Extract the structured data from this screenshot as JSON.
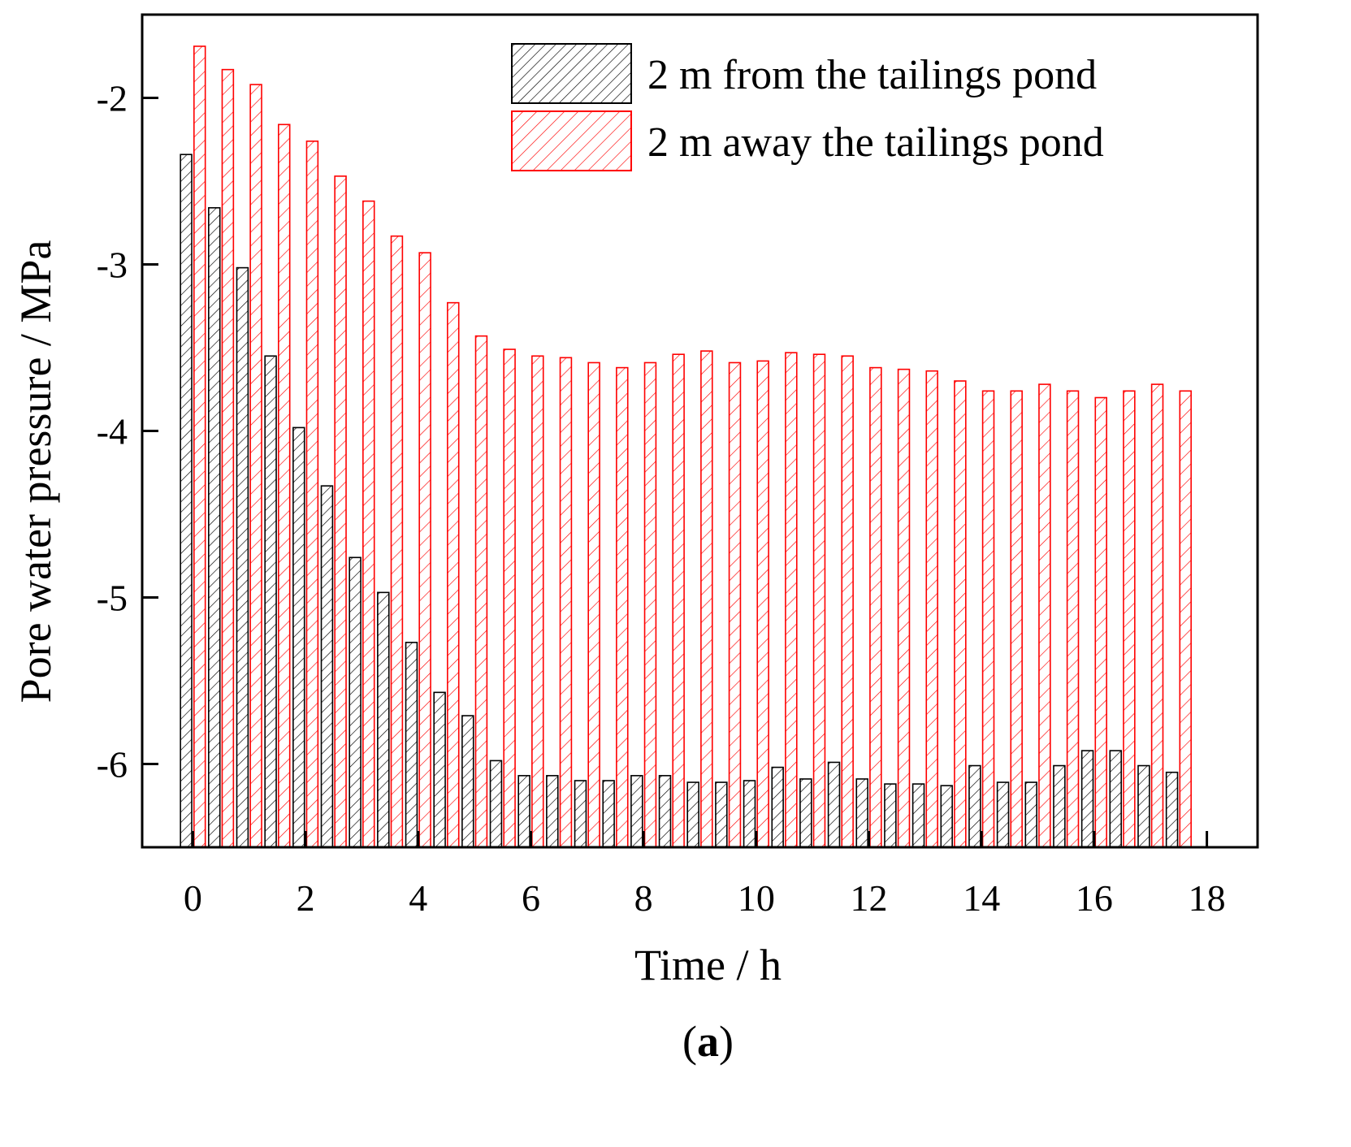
{
  "chart_data": {
    "type": "bar",
    "title": "",
    "panel_label": "a",
    "xlabel": "Time / h",
    "ylabel": "Pore water pressure / MPa",
    "xlim": [
      -0.9,
      18.9
    ],
    "ylim": [
      -6.5,
      -1.5
    ],
    "xticks": [
      0,
      2,
      4,
      6,
      8,
      10,
      12,
      14,
      16,
      18
    ],
    "yticks": [
      -2,
      -3,
      -4,
      -5,
      -6
    ],
    "grid": false,
    "legend_position": "top-right",
    "x": [
      0,
      0.5,
      1,
      1.5,
      2,
      2.5,
      3,
      3.5,
      4,
      4.5,
      5,
      5.5,
      6,
      6.5,
      7,
      7.5,
      8,
      8.5,
      9,
      9.5,
      10,
      10.5,
      11,
      11.5,
      12,
      12.5,
      13,
      13.5,
      14,
      14.5,
      15,
      15.5,
      16,
      16.5,
      17,
      17.5
    ],
    "series": [
      {
        "name": "2 m from the tailings pond",
        "color": "#000000",
        "values": [
          -2.34,
          -2.66,
          -3.02,
          -3.55,
          -3.98,
          -4.33,
          -4.76,
          -4.97,
          -5.27,
          -5.57,
          -5.71,
          -5.98,
          -6.07,
          -6.07,
          -6.1,
          -6.1,
          -6.07,
          -6.07,
          -6.11,
          -6.11,
          -6.1,
          -6.02,
          -6.09,
          -5.99,
          -6.09,
          -6.12,
          -6.12,
          -6.13,
          -6.01,
          -6.11,
          -6.11,
          -6.01,
          -5.92,
          -5.92,
          -6.01,
          -6.05
        ]
      },
      {
        "name": "2 m away the tailings pond",
        "color": "#ff0000",
        "values": [
          -1.69,
          -1.83,
          -1.92,
          -2.16,
          -2.26,
          -2.47,
          -2.62,
          -2.83,
          -2.93,
          -3.23,
          -3.43,
          -3.51,
          -3.55,
          -3.56,
          -3.59,
          -3.62,
          -3.59,
          -3.54,
          -3.52,
          -3.59,
          -3.58,
          -3.53,
          -3.54,
          -3.55,
          -3.62,
          -3.63,
          -3.64,
          -3.7,
          -3.76,
          -3.76,
          -3.72,
          -3.76,
          -3.8,
          -3.76,
          -3.72,
          -3.76
        ]
      }
    ]
  }
}
